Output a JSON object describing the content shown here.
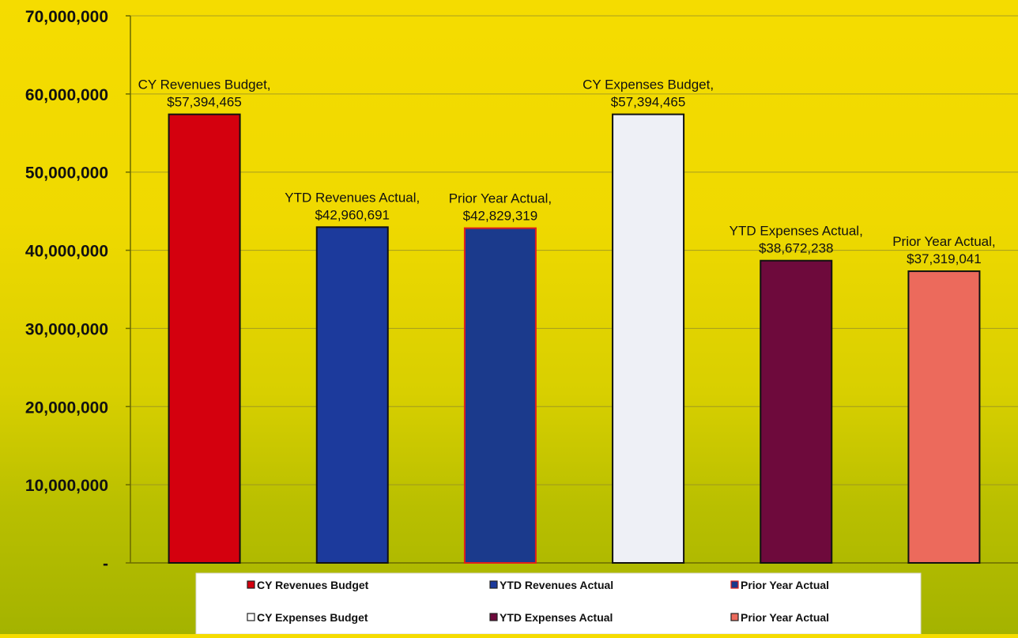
{
  "chart_data": {
    "type": "bar",
    "categories": [
      "CY Revenues Budget",
      "YTD Revenues Actual",
      "Prior Year Actual",
      "CY Expenses Budget",
      "YTD Expenses Actual",
      "Prior Year Actual"
    ],
    "values": [
      57394465,
      42960691,
      42829319,
      57394465,
      38672238,
      37319041
    ],
    "data_labels": [
      [
        "CY Revenues Budget,",
        "$57,394,465"
      ],
      [
        "YTD Revenues Actual,",
        "$42,960,691"
      ],
      [
        "Prior Year Actual,",
        "$42,829,319"
      ],
      [
        "CY Expenses Budget,",
        "$57,394,465"
      ],
      [
        "YTD Expenses Actual,",
        "$38,672,238"
      ],
      [
        "Prior Year Actual,",
        "$37,319,041"
      ]
    ],
    "bar_colors": [
      "#d4000e",
      "#1c3a9c",
      "#1b3a8c",
      "#eef0f6",
      "#6e0a3c",
      "#ec6a5c"
    ],
    "bar_borders": [
      "#111111",
      "#111111",
      "#e0201a",
      "#111111",
      "#111111",
      "#111111"
    ],
    "ylim": [
      0,
      70000000
    ],
    "y_ticks": [
      0,
      10000000,
      20000000,
      30000000,
      40000000,
      50000000,
      60000000,
      70000000
    ],
    "y_tick_labels": [
      "-",
      "10,000,000",
      "20,000,000",
      "30,000,000",
      "40,000,000",
      "50,000,000",
      "60,000,000",
      "70,000,000"
    ],
    "grid": true,
    "legend_position": "bottom",
    "legend": [
      {
        "label": "CY Revenues Budget",
        "color": "#d4000e"
      },
      {
        "label": "YTD Revenues Actual",
        "color": "#1c3a9c"
      },
      {
        "label": "Prior Year Actual",
        "color": "#1b3a8c",
        "border": "#e0201a"
      },
      {
        "label": "CY Expenses Budget",
        "color": "#ffffff"
      },
      {
        "label": "YTD Expenses Actual",
        "color": "#6e0a3c"
      },
      {
        "label": "Prior Year Actual",
        "color": "#ec6a5c"
      }
    ]
  }
}
